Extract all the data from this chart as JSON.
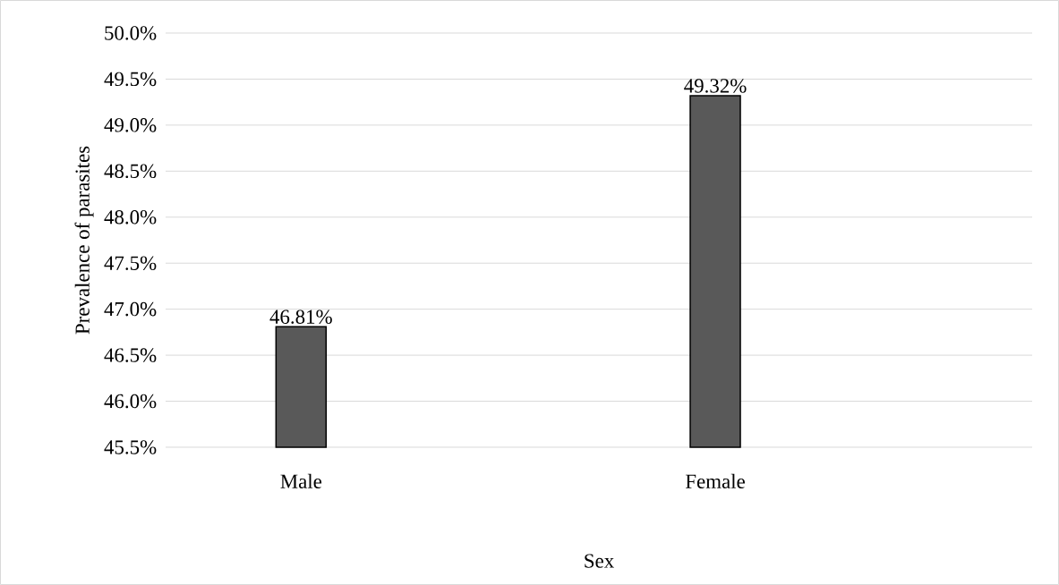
{
  "chart_data": {
    "type": "bar",
    "xlabel": "Sex",
    "ylabel": "Prevalence of parasites",
    "categories": [
      "Male",
      "Female"
    ],
    "values": [
      46.81,
      49.32
    ],
    "value_labels": [
      "46.81%",
      "49.32%"
    ],
    "colors": [
      "#595959",
      "#595959"
    ],
    "ylim": [
      45.5,
      50.0
    ],
    "yticks": [
      {
        "value": 45.5,
        "label": "45.5%"
      },
      {
        "value": 46.0,
        "label": "46.0%"
      },
      {
        "value": 46.5,
        "label": "46.5%"
      },
      {
        "value": 47.0,
        "label": "47.0%"
      },
      {
        "value": 47.5,
        "label": "47.5%"
      },
      {
        "value": 48.0,
        "label": "48.0%"
      },
      {
        "value": 48.5,
        "label": "48.5%"
      },
      {
        "value": 49.0,
        "label": "49.0%"
      },
      {
        "value": 49.5,
        "label": "49.5%"
      },
      {
        "value": 50.0,
        "label": "50.0%"
      }
    ],
    "grid": "y"
  }
}
